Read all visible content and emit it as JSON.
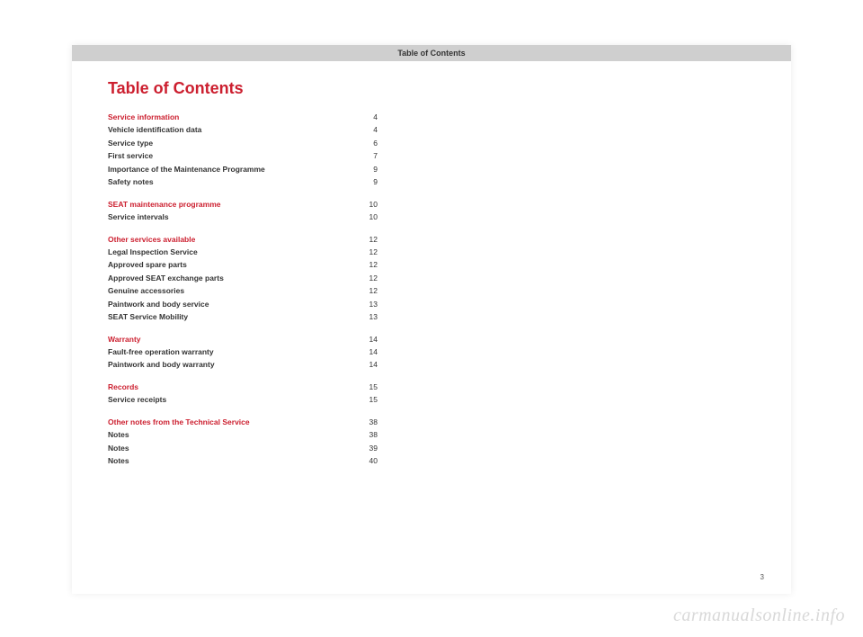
{
  "header": "Table of Contents",
  "title": "Table of Contents",
  "page_number": "3",
  "watermark": "carmanualsonline.info",
  "sections": [
    {
      "heading": {
        "label": "Service information",
        "page": "4"
      },
      "items": [
        {
          "label": "Vehicle identification data",
          "page": "4"
        },
        {
          "label": "Service type",
          "page": "6"
        },
        {
          "label": "First service",
          "page": "7"
        },
        {
          "label": "Importance of the Maintenance Programme",
          "page": "9"
        },
        {
          "label": "Safety notes",
          "page": "9"
        }
      ]
    },
    {
      "heading": {
        "label": "SEAT maintenance programme",
        "page": "10"
      },
      "items": [
        {
          "label": "Service intervals",
          "page": "10"
        }
      ]
    },
    {
      "heading": {
        "label": "Other services available",
        "page": "12"
      },
      "items": [
        {
          "label": "Legal Inspection Service",
          "page": "12"
        },
        {
          "label": "Approved spare parts",
          "page": "12"
        },
        {
          "label": "Approved SEAT exchange parts",
          "page": "12"
        },
        {
          "label": "Genuine accessories",
          "page": "12"
        },
        {
          "label": "Paintwork and body service",
          "page": "13"
        },
        {
          "label": "SEAT Service Mobility",
          "page": "13"
        }
      ]
    },
    {
      "heading": {
        "label": "Warranty",
        "page": "14"
      },
      "items": [
        {
          "label": "Fault-free operation warranty",
          "page": "14"
        },
        {
          "label": "Paintwork and body warranty",
          "page": "14"
        }
      ]
    },
    {
      "heading": {
        "label": "Records",
        "page": "15"
      },
      "items": [
        {
          "label": "Service receipts",
          "page": "15"
        }
      ]
    },
    {
      "heading": {
        "label": "Other notes from the Technical Service",
        "page": "38"
      },
      "items": [
        {
          "label": "Notes",
          "page": "38"
        },
        {
          "label": "Notes",
          "page": "39"
        },
        {
          "label": "Notes",
          "page": "40"
        }
      ]
    }
  ]
}
